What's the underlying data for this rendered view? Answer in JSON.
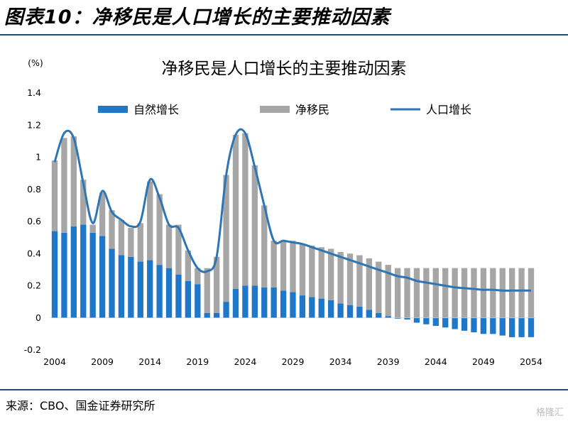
{
  "figure_title": "图表10：净移民是人口增长的主要推动因素",
  "source": "来源：CBO、国金证券研究所",
  "watermark": "格隆汇",
  "colors": {
    "natural": "#1f77c9",
    "migration": "#a6a6a6",
    "population": "#2e75b6",
    "rule": "#1f4e79"
  },
  "chart_data": {
    "type": "bar",
    "title": "净移民是人口增长的主要推动因素",
    "ylabel": "(%)",
    "xlabel": "",
    "ylim": [
      -0.2,
      1.4
    ],
    "yticks": [
      "1.4",
      "1.2",
      "1",
      "0.8",
      "0.6",
      "0.4",
      "0.2",
      "0",
      "-0.2"
    ],
    "xtick_labels": [
      "2004",
      "2009",
      "2014",
      "2019",
      "2024",
      "2029",
      "2034",
      "2039",
      "2044",
      "2049",
      "2054"
    ],
    "legend_position": "top",
    "categories": [
      2004,
      2005,
      2006,
      2007,
      2008,
      2009,
      2010,
      2011,
      2012,
      2013,
      2014,
      2015,
      2016,
      2017,
      2018,
      2019,
      2020,
      2021,
      2022,
      2023,
      2024,
      2025,
      2026,
      2027,
      2028,
      2029,
      2030,
      2031,
      2032,
      2033,
      2034,
      2035,
      2036,
      2037,
      2038,
      2039,
      2040,
      2041,
      2042,
      2043,
      2044,
      2045,
      2046,
      2047,
      2048,
      2049,
      2050,
      2051,
      2052,
      2053,
      2054
    ],
    "series": [
      {
        "name": "自然增长",
        "kind": "bar",
        "values": [
          0.54,
          0.53,
          0.57,
          0.58,
          0.53,
          0.51,
          0.43,
          0.39,
          0.38,
          0.35,
          0.36,
          0.33,
          0.31,
          0.27,
          0.23,
          0.21,
          0.03,
          0.03,
          0.1,
          0.18,
          0.2,
          0.2,
          0.19,
          0.19,
          0.17,
          0.16,
          0.14,
          0.13,
          0.12,
          0.11,
          0.09,
          0.08,
          0.07,
          0.05,
          0.03,
          0.01,
          -0.005,
          -0.01,
          -0.03,
          -0.04,
          -0.05,
          -0.06,
          -0.07,
          -0.08,
          -0.09,
          -0.1,
          -0.1,
          -0.11,
          -0.12,
          -0.12,
          -0.12
        ]
      },
      {
        "name": "净移民",
        "kind": "bar",
        "values": [
          0.44,
          0.59,
          0.56,
          0.28,
          0.05,
          0.27,
          0.24,
          0.22,
          0.18,
          0.24,
          0.49,
          0.44,
          0.27,
          0.31,
          0.19,
          0.1,
          0.28,
          0.35,
          0.79,
          0.96,
          0.95,
          0.75,
          0.51,
          0.29,
          0.31,
          0.32,
          0.32,
          0.32,
          0.32,
          0.32,
          0.32,
          0.32,
          0.32,
          0.32,
          0.32,
          0.32,
          0.31,
          0.31,
          0.31,
          0.31,
          0.31,
          0.31,
          0.31,
          0.31,
          0.31,
          0.31,
          0.31,
          0.31,
          0.31,
          0.31,
          0.31
        ]
      },
      {
        "name": "人口增长",
        "kind": "line",
        "values": [
          0.97,
          1.15,
          1.12,
          0.84,
          0.59,
          0.79,
          0.66,
          0.61,
          0.57,
          0.6,
          0.86,
          0.75,
          0.58,
          0.56,
          0.42,
          0.31,
          0.29,
          0.38,
          0.89,
          1.14,
          1.15,
          0.94,
          0.7,
          0.48,
          0.48,
          0.47,
          0.46,
          0.44,
          0.42,
          0.4,
          0.38,
          0.36,
          0.34,
          0.32,
          0.3,
          0.28,
          0.26,
          0.25,
          0.23,
          0.22,
          0.21,
          0.2,
          0.19,
          0.185,
          0.18,
          0.175,
          0.175,
          0.17,
          0.17,
          0.17,
          0.17
        ]
      }
    ]
  }
}
